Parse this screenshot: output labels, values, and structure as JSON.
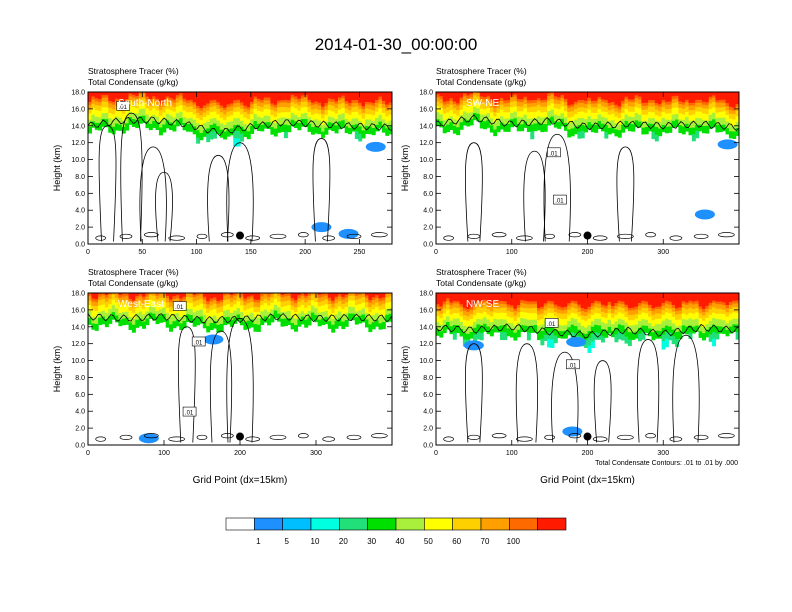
{
  "figure": {
    "title": "2014-01-30_00:00:00",
    "colorbar": {
      "colors": [
        "#ffffff",
        "#1e90ff",
        "#00bfff",
        "#00ffe0",
        "#21e07a",
        "#00e000",
        "#a8f03c",
        "#ffff00",
        "#ffd000",
        "#ffa000",
        "#ff6a00",
        "#ff1a00"
      ],
      "labels": [
        "1",
        "5",
        "10",
        "20",
        "30",
        "40",
        "50",
        "60",
        "70",
        "100"
      ]
    },
    "footnote": "Total Condensate Contours: .01 to .01 by .000"
  },
  "chart_data": [
    {
      "type": "heatmap",
      "title_line1": "Stratosphere Tracer   (%)",
      "title_line2": "Total Condensate   (g/kg)",
      "panel_label": "South-North",
      "ylabel": "Height (km)",
      "xlabel": "",
      "xlim": [
        0,
        280
      ],
      "ylim": [
        0,
        18
      ],
      "xticks": [
        0,
        50,
        100,
        150,
        200,
        250
      ],
      "yticks": [
        0,
        2,
        4,
        6,
        8,
        10,
        12,
        14,
        16,
        18
      ],
      "ytick_labels": [
        "0.0",
        "2.0",
        "4.0",
        "6.0",
        "8.0",
        "10.0",
        "12.0",
        "14.0",
        "16.0",
        "18.0"
      ],
      "contour_labels": [
        {
          "text": ".01",
          "x": 32,
          "y": 16.3
        }
      ],
      "marker": {
        "x": 140,
        "y": 1.0
      },
      "tropopause_km": [
        [
          0,
          14.6
        ],
        [
          30,
          15.2
        ],
        [
          60,
          15.3
        ],
        [
          90,
          14.8
        ],
        [
          120,
          13.8
        ],
        [
          150,
          14.5
        ],
        [
          180,
          15.0
        ],
        [
          210,
          14.8
        ],
        [
          240,
          14.6
        ],
        [
          280,
          14.4
        ]
      ],
      "cloud_tops_km": [
        [
          18,
          14.0
        ],
        [
          40,
          15.5
        ],
        [
          60,
          11.5
        ],
        [
          70,
          8.5
        ],
        [
          120,
          10.5
        ],
        [
          140,
          12.0
        ],
        [
          215,
          12.5
        ]
      ],
      "blue_patches": [
        {
          "x": 215,
          "y": 2.0
        },
        {
          "x": 240,
          "y": 1.2
        },
        {
          "x": 265,
          "y": 11.5
        }
      ]
    },
    {
      "type": "heatmap",
      "title_line1": "Stratosphere Tracer   (%)",
      "title_line2": "Total Condensate   (g/kg)",
      "panel_label": "SW-NE",
      "ylabel": "Height (km)",
      "xlabel": "",
      "xlim": [
        0,
        400
      ],
      "ylim": [
        0,
        18
      ],
      "xticks": [
        0,
        100,
        200,
        300
      ],
      "yticks": [
        0,
        2,
        4,
        6,
        8,
        10,
        12,
        14,
        16,
        18
      ],
      "ytick_labels": [
        "0.0",
        "2.0",
        "4.0",
        "6.0",
        "8.0",
        "10.0",
        "12.0",
        "14.0",
        "16.0",
        "18.0"
      ],
      "contour_labels": [
        {
          "text": ".01",
          "x": 155,
          "y": 10.8
        },
        {
          "text": ".01",
          "x": 163,
          "y": 5.2
        }
      ],
      "marker": {
        "x": 200,
        "y": 1.0
      },
      "tropopause_km": [
        [
          0,
          14.8
        ],
        [
          50,
          15.5
        ],
        [
          100,
          14.8
        ],
        [
          150,
          15.2
        ],
        [
          200,
          14.5
        ],
        [
          250,
          14.8
        ],
        [
          300,
          14.6
        ],
        [
          350,
          14.8
        ],
        [
          400,
          14.4
        ]
      ],
      "cloud_tops_km": [
        [
          50,
          12.0
        ],
        [
          130,
          11.0
        ],
        [
          160,
          13.0
        ],
        [
          250,
          11.5
        ]
      ],
      "blue_patches": [
        {
          "x": 355,
          "y": 3.5
        },
        {
          "x": 385,
          "y": 11.8
        }
      ]
    },
    {
      "type": "heatmap",
      "title_line1": "Stratosphere Tracer   (%)",
      "title_line2": "Total Condensate   (g/kg)",
      "panel_label": "West-East",
      "ylabel": "Height (km)",
      "xlabel": "Grid Point (dx=15km)",
      "xlim": [
        0,
        400
      ],
      "ylim": [
        0,
        18
      ],
      "xticks": [
        0,
        100,
        200,
        300
      ],
      "yticks": [
        0,
        2,
        4,
        6,
        8,
        10,
        12,
        14,
        16,
        18
      ],
      "ytick_labels": [
        "0.0",
        "2.0",
        "4.0",
        "6.0",
        "8.0",
        "10.0",
        "12.0",
        "14.0",
        "16.0",
        "18.0"
      ],
      "contour_labels": [
        {
          "text": ".01",
          "x": 120,
          "y": 16.4
        },
        {
          "text": ".01",
          "x": 145,
          "y": 12.2
        },
        {
          "text": ".01",
          "x": 133,
          "y": 3.9
        }
      ],
      "marker": {
        "x": 200,
        "y": 1.0
      },
      "tropopause_km": [
        [
          0,
          15.8
        ],
        [
          50,
          15.6
        ],
        [
          100,
          15.8
        ],
        [
          150,
          15.4
        ],
        [
          200,
          15.5
        ],
        [
          250,
          15.8
        ],
        [
          300,
          15.6
        ],
        [
          350,
          15.7
        ],
        [
          400,
          15.6
        ]
      ],
      "cloud_tops_km": [
        [
          130,
          14.0
        ],
        [
          175,
          13.5
        ],
        [
          200,
          15.0
        ]
      ],
      "blue_patches": [
        {
          "x": 80,
          "y": 0.8
        },
        {
          "x": 165,
          "y": 12.5
        }
      ]
    },
    {
      "type": "heatmap",
      "title_line1": "Stratosphere Tracer   (%)",
      "title_line2": "Total Condensate   (g/kg)",
      "panel_label": "NW-SE",
      "ylabel": "Height (km)",
      "xlabel": "Grid Point (dx=15km)",
      "xlim": [
        0,
        400
      ],
      "ylim": [
        0,
        18
      ],
      "xticks": [
        0,
        100,
        200,
        300
      ],
      "yticks": [
        0,
        2,
        4,
        6,
        8,
        10,
        12,
        14,
        16,
        18
      ],
      "ytick_labels": [
        "0.0",
        "2.0",
        "4.0",
        "6.0",
        "8.0",
        "10.0",
        "12.0",
        "14.0",
        "16.0",
        "18.0"
      ],
      "contour_labels": [
        {
          "text": ".01",
          "x": 152,
          "y": 14.4
        },
        {
          "text": ".01",
          "x": 180,
          "y": 9.5
        }
      ],
      "marker": {
        "x": 200,
        "y": 1.0
      },
      "tropopause_km": [
        [
          0,
          14.5
        ],
        [
          50,
          14.2
        ],
        [
          100,
          14.6
        ],
        [
          150,
          14.0
        ],
        [
          200,
          13.6
        ],
        [
          250,
          14.2
        ],
        [
          300,
          13.8
        ],
        [
          350,
          14.5
        ],
        [
          400,
          14.2
        ]
      ],
      "cloud_tops_km": [
        [
          50,
          12.0
        ],
        [
          120,
          12.0
        ],
        [
          170,
          11.0
        ],
        [
          220,
          10.0
        ],
        [
          280,
          12.5
        ],
        [
          330,
          13.0
        ]
      ],
      "blue_patches": [
        {
          "x": 50,
          "y": 11.8
        },
        {
          "x": 185,
          "y": 12.2
        },
        {
          "x": 180,
          "y": 1.6
        }
      ]
    }
  ]
}
